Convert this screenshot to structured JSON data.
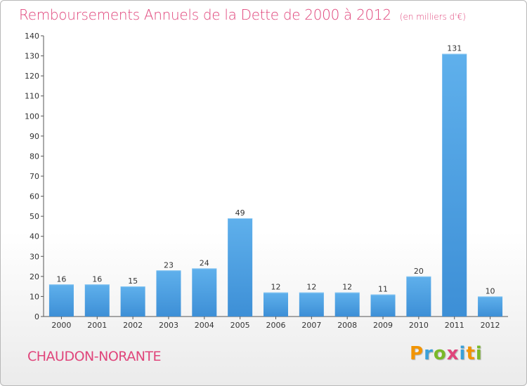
{
  "chart_data": {
    "type": "bar",
    "title": "Remboursements Annuels de la Dette de 2000 à 2012",
    "subtitle": "(en milliers d'€)",
    "categories": [
      "2000",
      "2001",
      "2002",
      "2003",
      "2004",
      "2005",
      "2006",
      "2007",
      "2008",
      "2009",
      "2010",
      "2011",
      "2012"
    ],
    "values": [
      16,
      16,
      15,
      23,
      24,
      49,
      12,
      12,
      12,
      11,
      20,
      131,
      10
    ],
    "ylim": [
      0,
      140
    ],
    "yticks": [
      0,
      10,
      20,
      30,
      40,
      50,
      60,
      70,
      80,
      90,
      100,
      110,
      120,
      130,
      140
    ],
    "grid": false,
    "bar_color": "#3d8fd6",
    "bar_color_light": "#5fb0ec"
  },
  "commune": "CHAUDON-NORANTE",
  "logo": {
    "letters": [
      "P",
      "r",
      "o",
      "x",
      "i",
      "t",
      "i"
    ],
    "colors": [
      "#f29400",
      "#3aa0d8",
      "#7ab929",
      "#e0457b",
      "#3aa0d8",
      "#f29400",
      "#7ab929"
    ]
  }
}
